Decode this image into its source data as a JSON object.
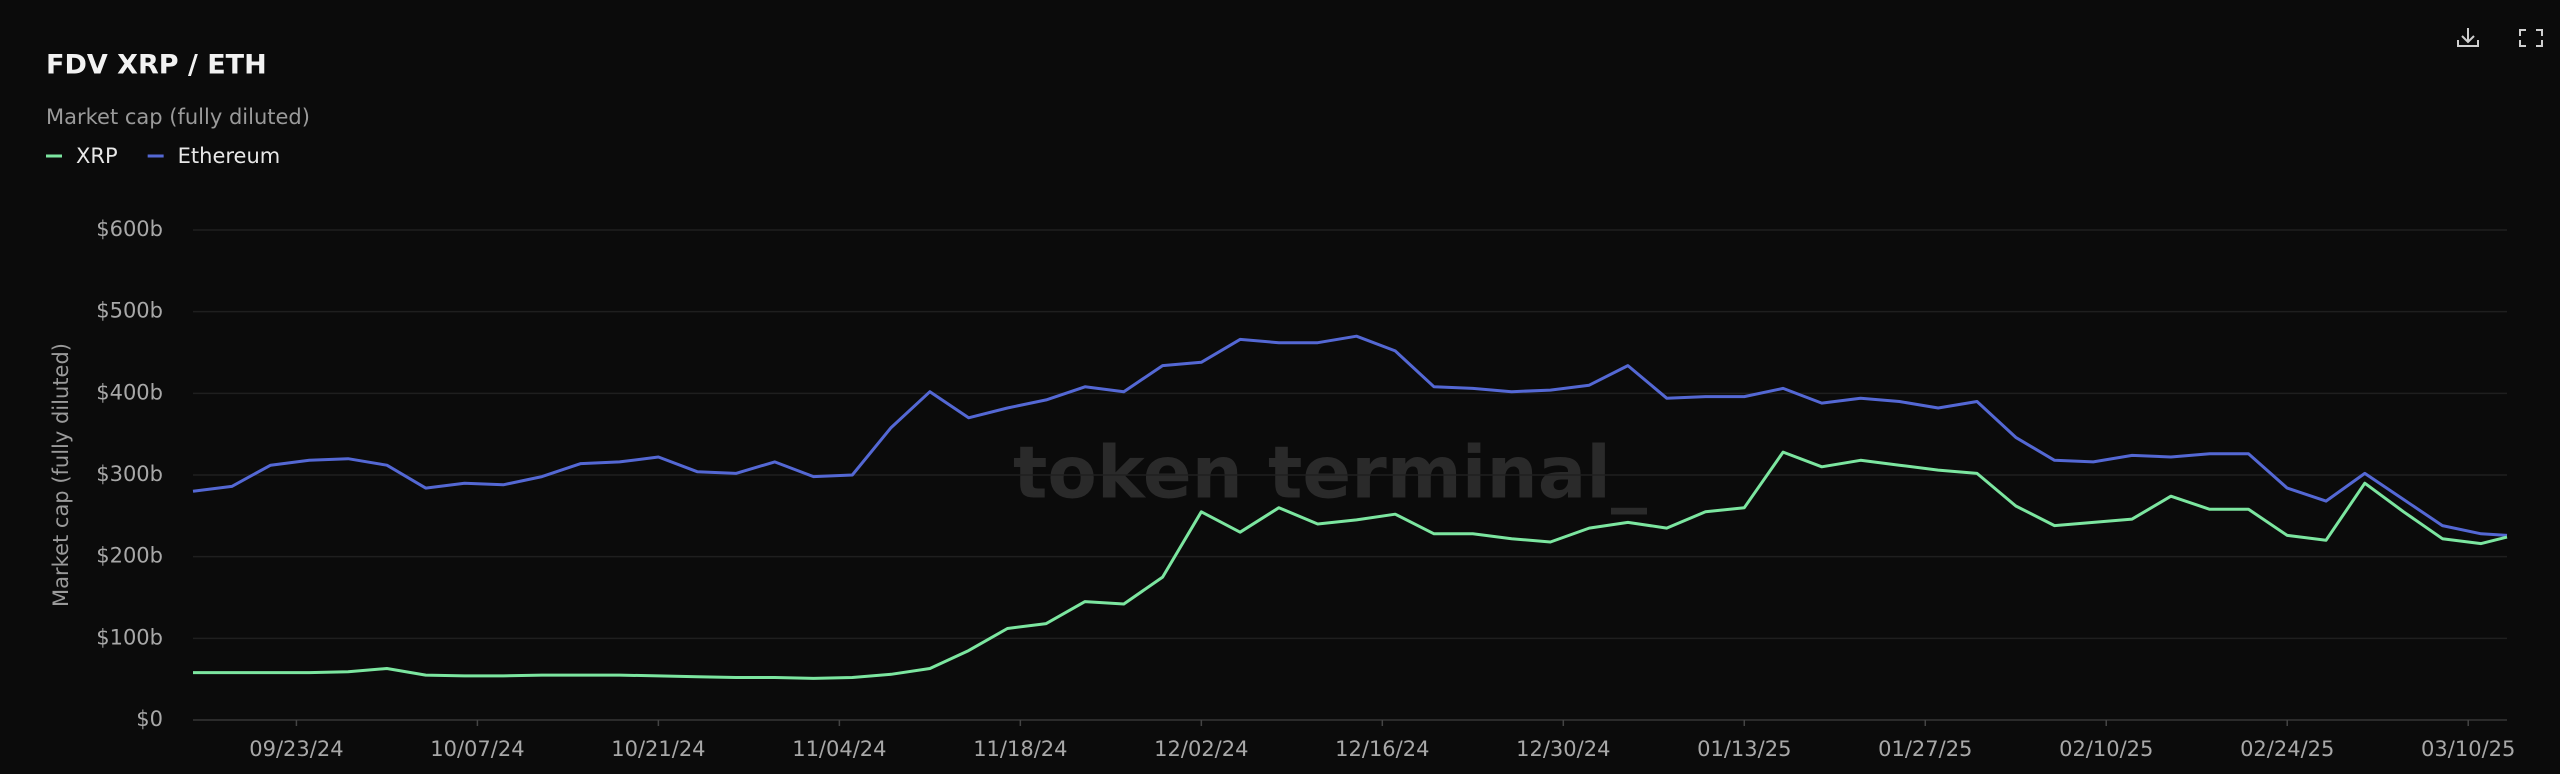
{
  "chart_data": {
    "type": "line",
    "title": "FDV XRP / ETH",
    "subtitle": "Market cap (fully diluted)",
    "y_label": "Market cap (fully diluted)",
    "watermark": "token terminal_",
    "x": [
      "09/15/24",
      "09/18/24",
      "09/21/24",
      "09/24/24",
      "09/27/24",
      "09/30/24",
      "10/03/24",
      "10/06/24",
      "10/09/24",
      "10/12/24",
      "10/15/24",
      "10/18/24",
      "10/21/24",
      "10/24/24",
      "10/27/24",
      "10/30/24",
      "11/02/24",
      "11/05/24",
      "11/08/24",
      "11/11/24",
      "11/14/24",
      "11/17/24",
      "11/20/24",
      "11/23/24",
      "11/26/24",
      "11/29/24",
      "12/02/24",
      "12/05/24",
      "12/08/24",
      "12/11/24",
      "12/14/24",
      "12/17/24",
      "12/20/24",
      "12/23/24",
      "12/26/24",
      "12/29/24",
      "01/01/25",
      "01/04/25",
      "01/07/25",
      "01/10/25",
      "01/13/25",
      "01/16/25",
      "01/19/25",
      "01/22/25",
      "01/25/25",
      "01/28/25",
      "01/31/25",
      "02/03/25",
      "02/06/25",
      "02/09/25",
      "02/12/25",
      "02/15/25",
      "02/18/25",
      "02/21/25",
      "02/24/25",
      "02/27/25",
      "03/02/25",
      "03/05/25",
      "03/08/25",
      "03/11/25",
      "03/13/25"
    ],
    "series": [
      {
        "name": "XRP",
        "color": "#7ce6a0",
        "values": [
          58,
          58,
          58,
          58,
          59,
          63,
          55,
          54,
          54,
          55,
          55,
          55,
          54,
          53,
          52,
          52,
          51,
          52,
          56,
          63,
          85,
          112,
          118,
          145,
          142,
          175,
          255,
          230,
          260,
          240,
          245,
          252,
          228,
          228,
          222,
          218,
          235,
          242,
          235,
          255,
          260,
          328,
          310,
          318,
          312,
          306,
          302,
          262,
          238,
          242,
          246,
          274,
          258,
          258,
          226,
          220,
          290,
          255,
          222,
          216,
          224
        ]
      },
      {
        "name": "Ethereum",
        "color": "#5468d4",
        "values": [
          280,
          286,
          312,
          318,
          320,
          312,
          284,
          290,
          288,
          298,
          314,
          316,
          322,
          304,
          302,
          316,
          298,
          300,
          358,
          402,
          370,
          382,
          392,
          408,
          402,
          434,
          438,
          466,
          462,
          462,
          470,
          452,
          408,
          406,
          402,
          404,
          410,
          434,
          394,
          396,
          396,
          406,
          388,
          394,
          390,
          382,
          390,
          346,
          318,
          316,
          324,
          322,
          326,
          326,
          284,
          268,
          302,
          270,
          238,
          228,
          226
        ]
      }
    ],
    "xlim": [
      "09/15/24",
      "03/13/25"
    ],
    "xticks": [
      "09/23/24",
      "10/07/24",
      "10/21/24",
      "11/04/24",
      "11/18/24",
      "12/02/24",
      "12/16/24",
      "12/30/24",
      "01/13/25",
      "01/27/25",
      "02/10/25",
      "02/24/25",
      "03/10/25"
    ],
    "ylim": [
      0,
      600
    ],
    "yticks": [
      {
        "value": 0,
        "label": "$0"
      },
      {
        "value": 100,
        "label": "$100b"
      },
      {
        "value": 200,
        "label": "$200b"
      },
      {
        "value": 300,
        "label": "$300b"
      },
      {
        "value": 400,
        "label": "$400b"
      },
      {
        "value": 500,
        "label": "$500b"
      },
      {
        "value": 600,
        "label": "$600b"
      }
    ],
    "grid": true
  }
}
